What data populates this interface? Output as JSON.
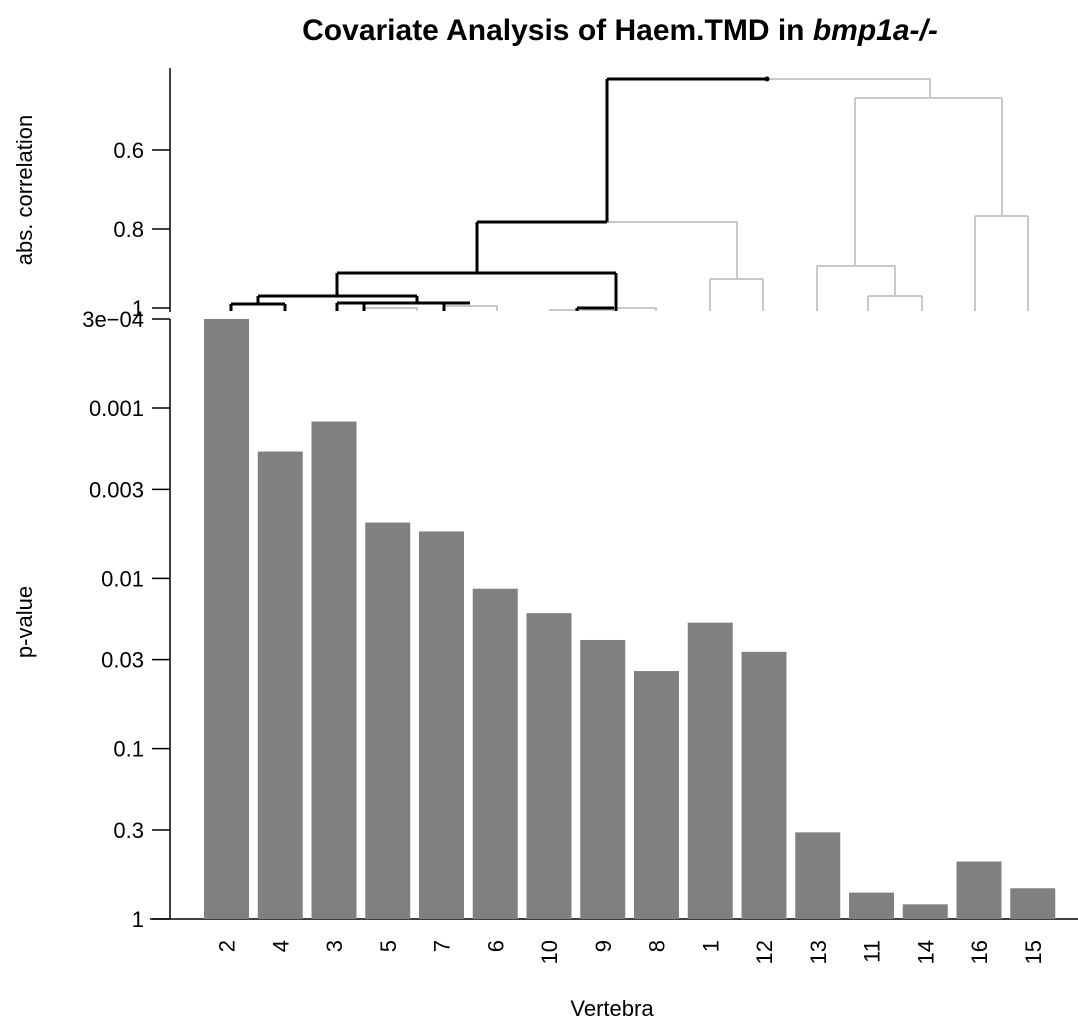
{
  "chart_data": {
    "type": "bar",
    "title_main": "Covariate Analysis of Haem.TMD in ",
    "title_italic": "bmp1a-/-",
    "dendrogram": {
      "ylabel": "abs. correlation",
      "yticks": [
        "0.6",
        "0.8",
        "1"
      ],
      "ytick_values": [
        0.6,
        0.8,
        1.0
      ],
      "ylim": [
        0.42,
        1.0
      ],
      "color_highlight": "#000000",
      "color_other": "#c8c8c8"
    },
    "bars": {
      "xlabel": "Vertebra",
      "ylabel": "p-value",
      "log_scale": true,
      "yticks": [
        "3e−04",
        "0.001",
        "0.003",
        "0.01",
        "0.03",
        "0.1",
        "0.3",
        "1"
      ],
      "ytick_values": [
        0.0003,
        0.001,
        0.003,
        0.01,
        0.03,
        0.1,
        0.3,
        1
      ],
      "ylim": [
        0.0003,
        1
      ],
      "categories": [
        "2",
        "4",
        "3",
        "5",
        "7",
        "6",
        "10",
        "9",
        "8",
        "1",
        "12",
        "13",
        "11",
        "14",
        "16",
        "15"
      ],
      "values": [
        0.00028,
        0.0018,
        0.0012,
        0.0047,
        0.0053,
        0.0115,
        0.016,
        0.023,
        0.035,
        0.0182,
        0.027,
        0.31,
        0.7,
        0.82,
        0.46,
        0.66
      ],
      "bar_color": "#808080"
    }
  }
}
